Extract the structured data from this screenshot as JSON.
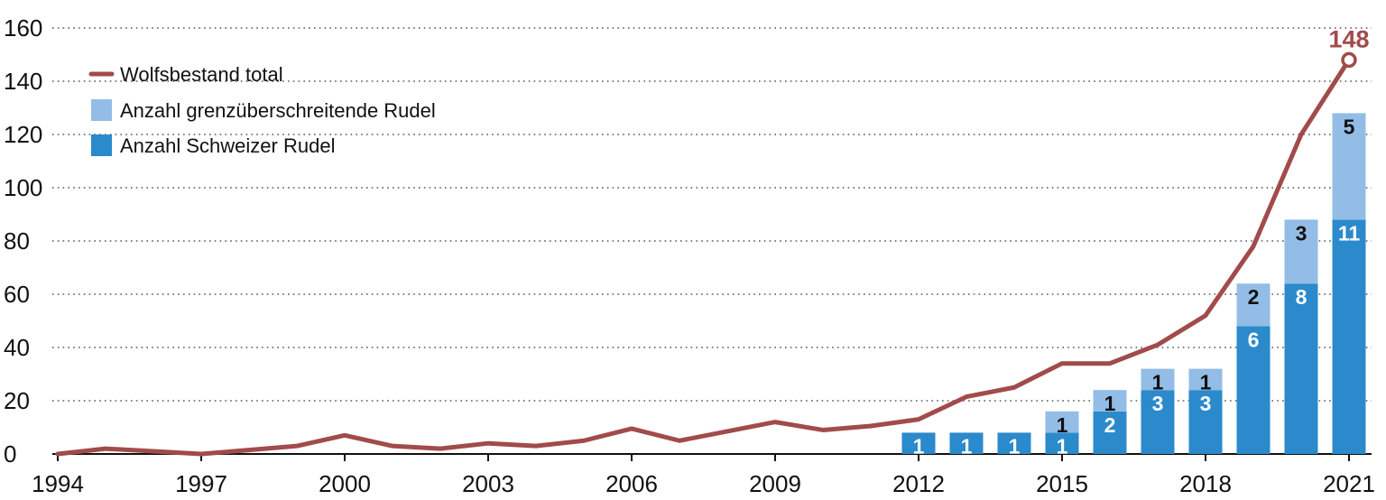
{
  "chart_data": {
    "type": "bar",
    "title": "",
    "xlabel": "",
    "ylabel": "",
    "xlim": [
      1994,
      2021
    ],
    "ylim": [
      0,
      160
    ],
    "y_ticks": [
      0,
      20,
      40,
      60,
      80,
      100,
      120,
      140,
      160
    ],
    "x_ticks": [
      1994,
      1997,
      2000,
      2003,
      2006,
      2009,
      2012,
      2015,
      2018,
      2021
    ],
    "grid": "horizontal dotted",
    "legend_position": "top-left",
    "legend": [
      {
        "key": "line",
        "label": "Wolfsbestand total"
      },
      {
        "key": "foreign",
        "label": "Anzahl grenzüberschreitende Rudel"
      },
      {
        "key": "swiss",
        "label": "Anzahl Schweizer Rudel"
      }
    ],
    "line": {
      "name": "Wolfsbestand total",
      "x": [
        1994,
        1995,
        1996,
        1997,
        1998,
        1999,
        2000,
        2001,
        2002,
        2003,
        2004,
        2005,
        2006,
        2007,
        2008,
        2009,
        2010,
        2011,
        2012,
        2013,
        2014,
        2015,
        2016,
        2017,
        2018,
        2019,
        2020,
        2021
      ],
      "y": [
        0,
        2,
        1,
        0,
        1.5,
        3,
        7,
        3,
        2,
        4,
        3,
        5,
        9.5,
        5,
        8.5,
        12,
        9,
        10.5,
        13,
        21.5,
        25,
        34,
        34,
        41,
        52,
        78,
        120,
        148
      ],
      "end_label": "148"
    },
    "bars": {
      "x": [
        2012,
        2013,
        2014,
        2015,
        2016,
        2017,
        2018,
        2019,
        2020,
        2021
      ],
      "swiss": [
        1,
        1,
        1,
        1,
        2,
        3,
        3,
        6,
        8,
        11
      ],
      "foreign": [
        0,
        0,
        0,
        1,
        1,
        1,
        1,
        2,
        3,
        5
      ]
    },
    "colors": {
      "line": "#a14b4a",
      "swiss": "#2b8acb",
      "foreign": "#93bde6",
      "grid": "#555555",
      "axis": "#111111"
    }
  }
}
